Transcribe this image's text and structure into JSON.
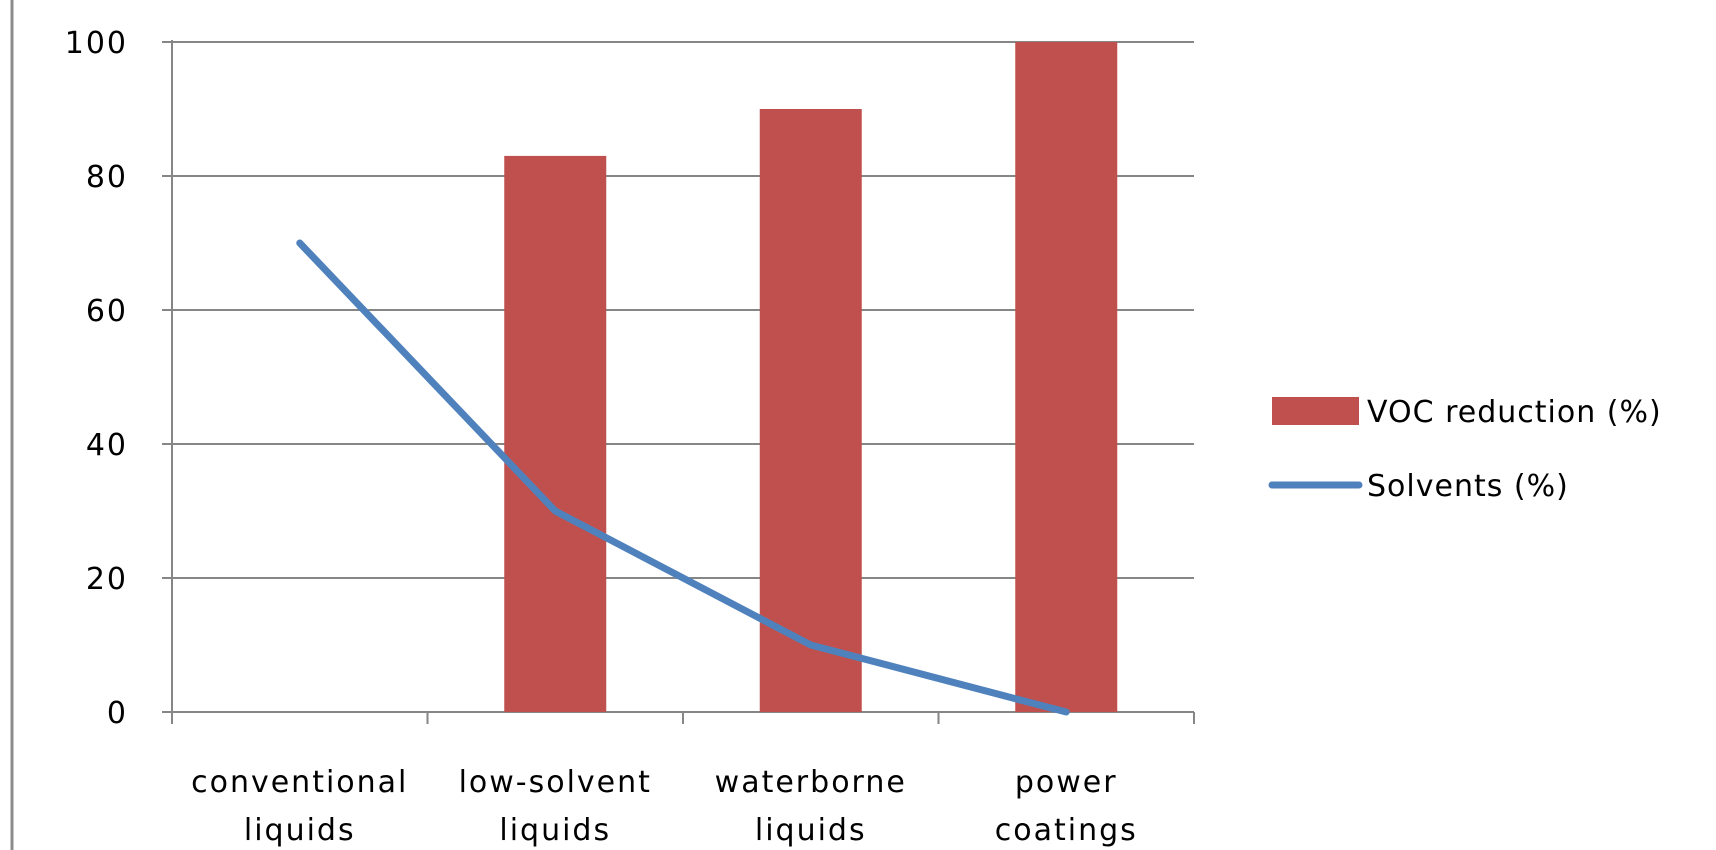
{
  "chart_data": {
    "type": "bar",
    "categories": [
      [
        "conventional",
        "liquids"
      ],
      [
        "low-solvent",
        "liquids"
      ],
      [
        "waterborne",
        "liquids"
      ],
      [
        "power",
        "coatings"
      ]
    ],
    "series": [
      {
        "name": "VOC reduction (%)",
        "type": "bar",
        "color": "#c0504d",
        "values": [
          0,
          83,
          90,
          100
        ]
      },
      {
        "name": "Solvents (%)",
        "type": "line",
        "color": "#4f81bd",
        "values": [
          70,
          30,
          10,
          0
        ]
      }
    ],
    "ylim": [
      0,
      100
    ],
    "yticks": [
      0,
      20,
      40,
      60,
      80,
      100
    ],
    "grid": true,
    "legend_position": "right"
  }
}
